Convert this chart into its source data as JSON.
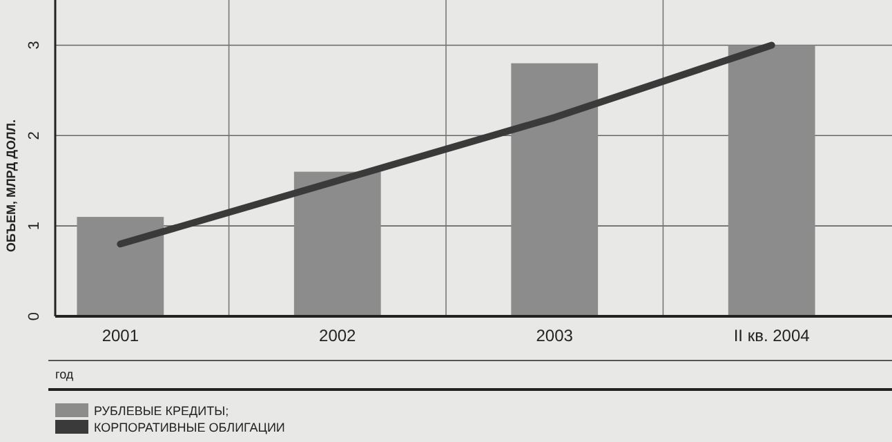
{
  "chart_data": {
    "type": "bar",
    "xlabel": "год",
    "ylabel": "ОБЪЕМ, МЛРД ДОЛЛ.",
    "categories": [
      "2001",
      "2002",
      "2003",
      "II кв. 2004"
    ],
    "series": [
      {
        "name": "РУБЛЕВЫЕ КРЕДИТЫ;",
        "color": "#8c8c8c",
        "values": [
          1.1,
          1.6,
          2.8,
          3.0
        ]
      },
      {
        "name": "КОРПОРАТИВНЫЕ ОБЛИГАЦИИ",
        "type": "line",
        "color": "#3a3a3a",
        "values": [
          0.8,
          1.5,
          2.2,
          3.0
        ]
      }
    ],
    "ylim": [
      0,
      3.5
    ],
    "yticks": [
      0,
      1,
      2,
      3
    ],
    "grid": true,
    "legend": "bottom"
  }
}
